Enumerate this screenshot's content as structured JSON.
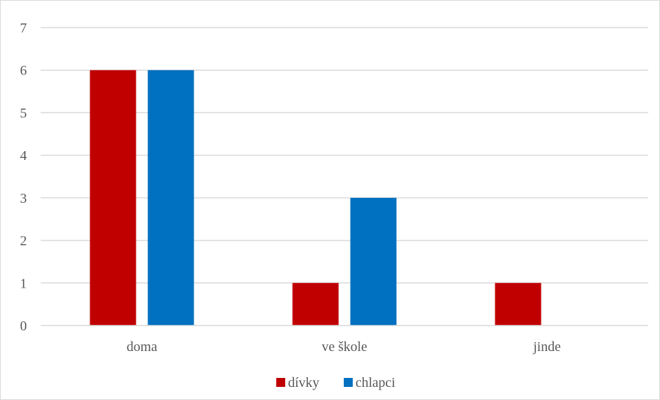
{
  "chart_data": {
    "type": "bar",
    "categories": [
      "doma",
      "ve škole",
      "jinde"
    ],
    "series": [
      {
        "name": "dívky",
        "values": [
          6,
          1,
          1
        ],
        "color": "#c00000"
      },
      {
        "name": "chlapci",
        "values": [
          6,
          3,
          0
        ],
        "color": "#0070c0"
      }
    ],
    "title": "",
    "xlabel": "",
    "ylabel": "",
    "ylim": [
      0,
      7
    ],
    "yticks": [
      0,
      1,
      2,
      3,
      4,
      5,
      6,
      7
    ],
    "grid": true,
    "legend_position": "bottom"
  }
}
